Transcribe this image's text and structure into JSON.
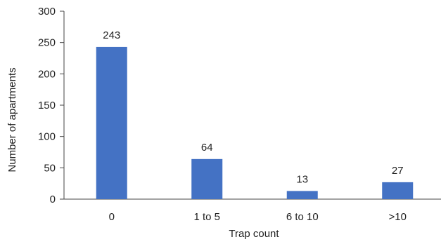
{
  "chart_data": {
    "type": "bar",
    "categories": [
      "0",
      "1 to 5",
      "6 to 10",
      ">10"
    ],
    "values": [
      243,
      64,
      13,
      27
    ],
    "data_labels": [
      "243",
      "64",
      "13",
      "27"
    ],
    "title": "",
    "xlabel": "Trap count",
    "ylabel": "Number of apartments",
    "ylim": [
      0,
      300
    ],
    "yticks": [
      0,
      50,
      100,
      150,
      200,
      250,
      300
    ],
    "ytick_labels": [
      "0",
      "50",
      "100",
      "150",
      "200",
      "250",
      "300"
    ],
    "grid": false,
    "legend": "none",
    "bar_color": "#4472C4"
  }
}
